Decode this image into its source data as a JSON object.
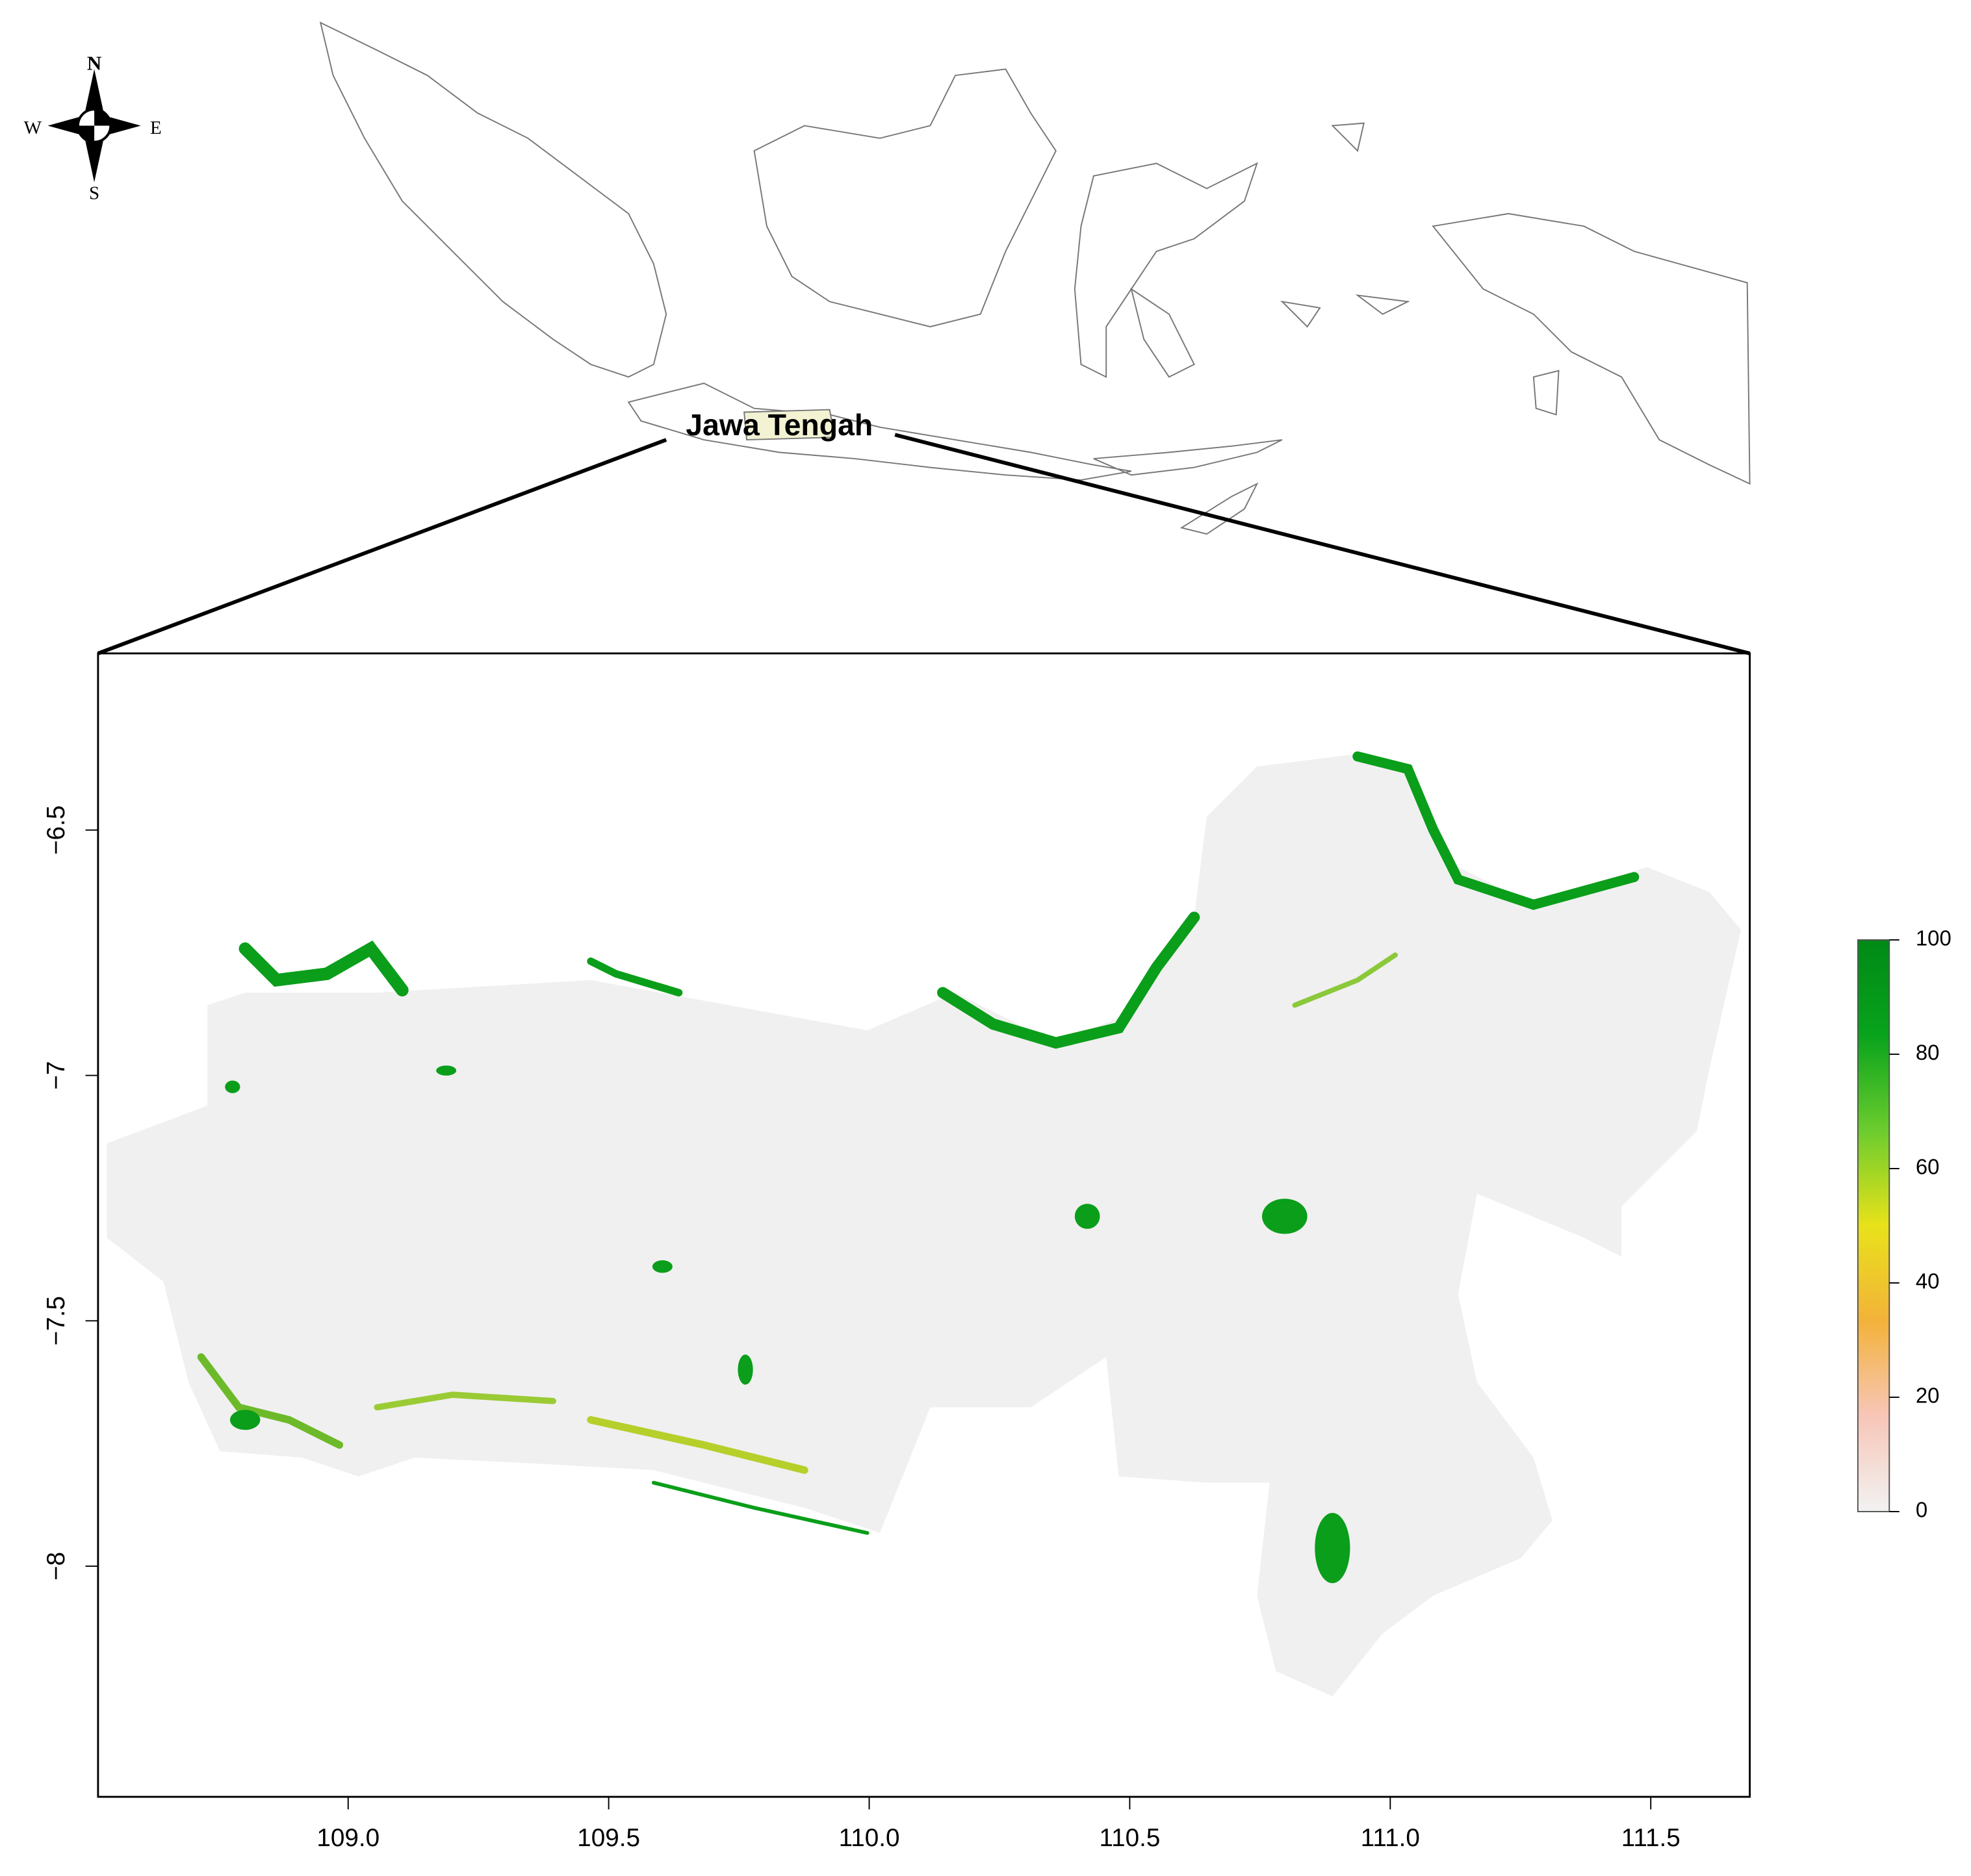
{
  "overview_label": "Jawa Tengah",
  "compass": {
    "n": "N",
    "s": "S",
    "e": "E",
    "w": "W"
  },
  "map": {
    "xlim": [
      108.52,
      111.69
    ],
    "ylim": [
      -8.47,
      -6.14
    ],
    "xticks": [
      {
        "value": 109,
        "label": "109.0"
      },
      109.5,
      {
        "value": 110,
        "label": "110.0"
      },
      110.5,
      {
        "value": 111,
        "label": "111.0"
      },
      111.5
    ],
    "yticks": [
      {
        "value": -6.5,
        "label": "−6.5"
      },
      {
        "value": -7,
        "label": "−7"
      },
      {
        "value": -7.5,
        "label": "−7.5"
      },
      {
        "value": -8,
        "label": "−8"
      }
    ]
  },
  "colorbar": {
    "lim": [
      0,
      100
    ],
    "ticks": [
      0,
      20,
      40,
      60,
      80,
      100
    ],
    "colors": [
      "#f2f2f2",
      "#f7c6b8",
      "#f3b23a",
      "#e8e21a",
      "#6ccc2e",
      "#08a31c",
      "#008a16"
    ]
  }
}
